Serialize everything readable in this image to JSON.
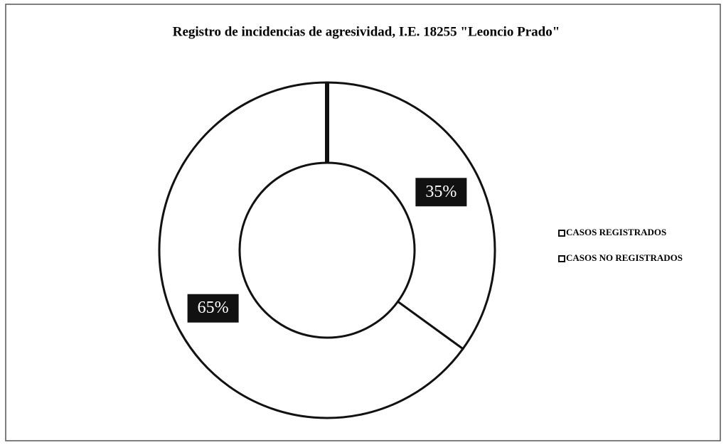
{
  "chart_data": {
    "type": "donut",
    "title": "Registro de incidencias de agresividad, I.E. 18255 \"Leoncio Prado\"",
    "categories": [
      "CASOS REGISTRADOS",
      "CASOS NO REGISTRADOS"
    ],
    "values": [
      35,
      65
    ],
    "value_labels": [
      "35%",
      "65%"
    ],
    "colors": [
      "#ffffff",
      "#ffffff"
    ],
    "legend": "right"
  }
}
